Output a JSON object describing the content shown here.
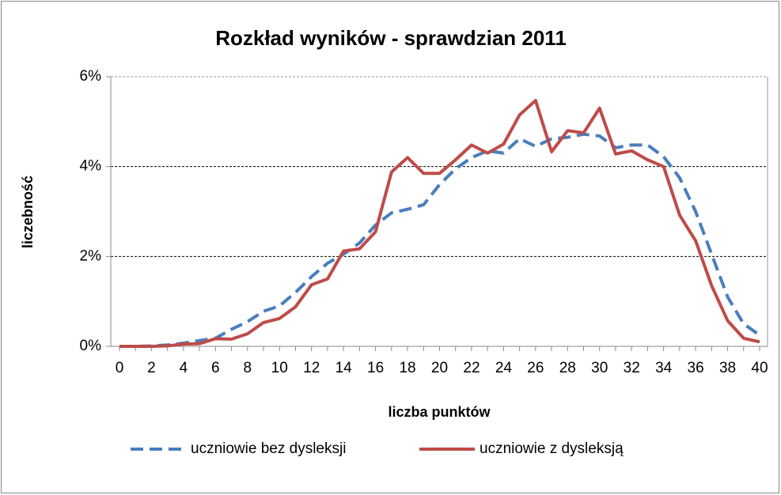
{
  "chart_data": {
    "type": "line",
    "title": "Rozkład wyników - sprawdzian 2011",
    "x_label": "liczba punktów",
    "y_label": "liczebność",
    "x": [
      0,
      1,
      2,
      3,
      4,
      5,
      6,
      7,
      8,
      9,
      10,
      11,
      12,
      13,
      14,
      15,
      16,
      17,
      18,
      19,
      20,
      21,
      22,
      23,
      24,
      25,
      26,
      27,
      28,
      29,
      30,
      31,
      32,
      33,
      34,
      35,
      36,
      37,
      38,
      39,
      40
    ],
    "xlim": [
      0,
      40
    ],
    "xticks": [
      0,
      2,
      4,
      6,
      8,
      10,
      12,
      14,
      16,
      18,
      20,
      22,
      24,
      26,
      28,
      30,
      32,
      34,
      36,
      38,
      40
    ],
    "ylim": [
      0,
      6
    ],
    "yticks": [
      {
        "value": 0,
        "label": "0%"
      },
      {
        "value": 2,
        "label": "2%"
      },
      {
        "value": 4,
        "label": "4%"
      },
      {
        "value": 6,
        "label": "6%"
      }
    ],
    "grid": true,
    "legend": "bottom",
    "series": [
      {
        "name": "uczniowie bez dysleksji",
        "color": "#4a7ebb",
        "dash": true,
        "values": [
          0,
          0,
          0.01,
          0.03,
          0.07,
          0.13,
          0.18,
          0.38,
          0.55,
          0.78,
          0.9,
          1.2,
          1.55,
          1.85,
          2.05,
          2.3,
          2.7,
          2.97,
          3.05,
          3.15,
          3.6,
          3.95,
          4.2,
          4.35,
          4.3,
          4.62,
          4.45,
          4.62,
          4.65,
          4.72,
          4.68,
          4.42,
          4.48,
          4.48,
          4.22,
          3.75,
          3.0,
          2.05,
          1.1,
          0.5,
          0.25
        ]
      },
      {
        "name": "uczniowie z dysleksją",
        "color": "#be4b48",
        "dash": false,
        "values": [
          0,
          0,
          0,
          0.01,
          0.05,
          0.06,
          0.17,
          0.16,
          0.28,
          0.53,
          0.62,
          0.88,
          1.37,
          1.5,
          2.12,
          2.17,
          2.55,
          3.88,
          4.2,
          3.85,
          3.85,
          4.15,
          4.48,
          4.3,
          4.5,
          5.15,
          5.47,
          4.33,
          4.8,
          4.75,
          5.3,
          4.28,
          4.35,
          4.15,
          4.0,
          2.92,
          2.35,
          1.35,
          0.57,
          0.18,
          0.1
        ]
      }
    ]
  }
}
